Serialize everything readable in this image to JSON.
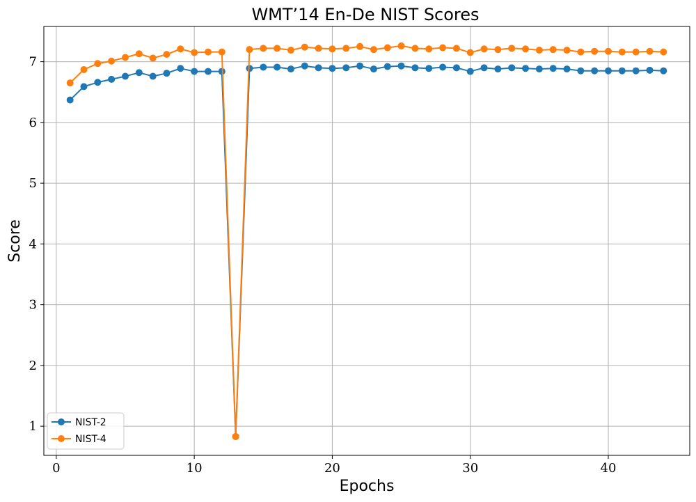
{
  "chart_data": {
    "type": "line",
    "title": "WMT’14 En-De NIST Scores",
    "xlabel": "Epochs",
    "ylabel": "Score",
    "xlim": [
      -0.9,
      45.9
    ],
    "ylim": [
      0.52,
      7.58
    ],
    "xticks": [
      0,
      10,
      20,
      30,
      40
    ],
    "yticks": [
      1,
      2,
      3,
      4,
      5,
      6,
      7
    ],
    "grid": true,
    "legend": "lower-left",
    "x": [
      1,
      2,
      3,
      4,
      5,
      6,
      7,
      8,
      9,
      10,
      11,
      12,
      13,
      14,
      15,
      16,
      17,
      18,
      19,
      20,
      21,
      22,
      23,
      24,
      25,
      26,
      27,
      28,
      29,
      30,
      31,
      32,
      33,
      34,
      35,
      36,
      37,
      38,
      39,
      40,
      41,
      42,
      43,
      44
    ],
    "series": [
      {
        "name": "NIST-2",
        "color": "#1f77b4",
        "values": [
          6.37,
          6.59,
          6.66,
          6.71,
          6.76,
          6.82,
          6.76,
          6.81,
          6.89,
          6.84,
          6.84,
          6.84,
          0.83,
          6.89,
          6.91,
          6.91,
          6.88,
          6.93,
          6.9,
          6.89,
          6.9,
          6.93,
          6.88,
          6.92,
          6.93,
          6.9,
          6.89,
          6.91,
          6.9,
          6.84,
          6.9,
          6.88,
          6.9,
          6.89,
          6.88,
          6.89,
          6.88,
          6.85,
          6.85,
          6.85,
          6.85,
          6.85,
          6.86,
          6.85
        ]
      },
      {
        "name": "NIST-4",
        "color": "#ff7f0e",
        "values": [
          6.65,
          6.87,
          6.97,
          7.01,
          7.07,
          7.13,
          7.06,
          7.12,
          7.21,
          7.15,
          7.16,
          7.16,
          0.83,
          7.2,
          7.22,
          7.22,
          7.19,
          7.24,
          7.22,
          7.21,
          7.22,
          7.25,
          7.2,
          7.23,
          7.26,
          7.22,
          7.21,
          7.23,
          7.22,
          7.15,
          7.21,
          7.2,
          7.22,
          7.21,
          7.19,
          7.2,
          7.19,
          7.16,
          7.17,
          7.17,
          7.16,
          7.16,
          7.17,
          7.16
        ]
      }
    ]
  }
}
